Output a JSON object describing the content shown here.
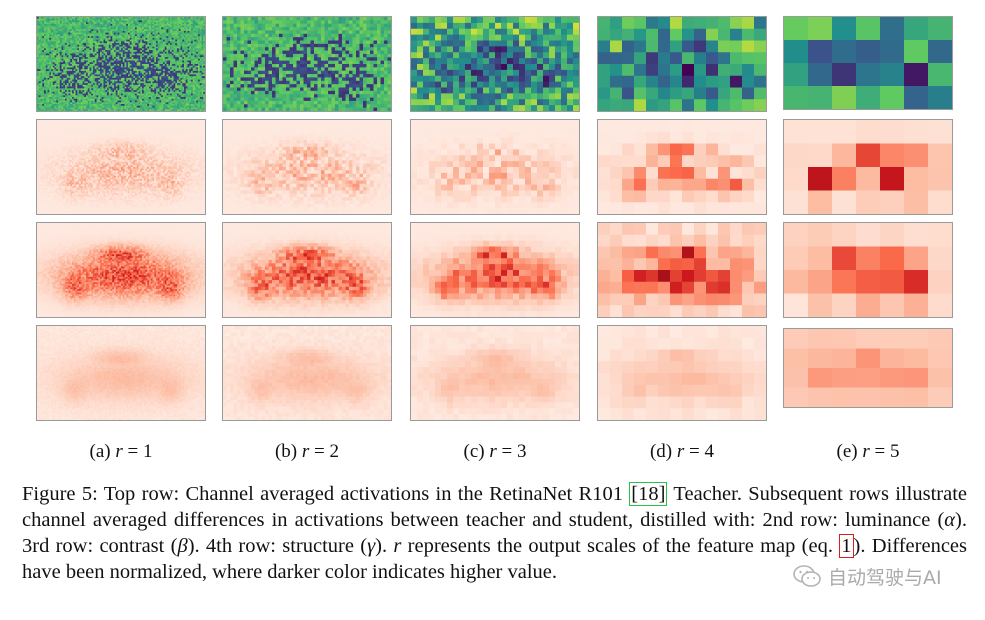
{
  "figure": {
    "columns": [
      {
        "id": "a",
        "prefix": "(a) ",
        "var": "r",
        "rest": " = 1"
      },
      {
        "id": "b",
        "prefix": "(b) ",
        "var": "r",
        "rest": " = 2"
      },
      {
        "id": "c",
        "prefix": "(c) ",
        "var": "r",
        "rest": " = 3"
      },
      {
        "id": "d",
        "prefix": "(d) ",
        "var": "r",
        "rest": " = 4"
      },
      {
        "id": "e",
        "prefix": "(e) ",
        "var": "r",
        "rest": " = 5"
      }
    ],
    "rows": [
      "teacher-activation",
      "luminance-difference",
      "contrast-difference",
      "structure-difference"
    ],
    "colormaps": {
      "viridis": [
        "#440154",
        "#3b528b",
        "#21918c",
        "#5ec962",
        "#fde725"
      ],
      "reds": [
        "#fff5f0",
        "#fcbba1",
        "#fb6a4a",
        "#cb181d",
        "#67000d"
      ]
    }
  },
  "caption": {
    "part1": "Figure 5: Top row: Channel averaged activations in the RetinaNet R101 ",
    "cite": "[18]",
    "part2": " Teacher. Subsequent rows illustrate channel averaged differences in activations between teacher and student, distilled with: 2nd row: luminance (",
    "alpha": "α",
    "part3": "). 3rd row: contrast (",
    "beta": "β",
    "part4": "). 4th row: structure (",
    "gamma": "γ",
    "part5": "). ",
    "rvar": "r",
    "part6": " represents the output scales of the feature map (eq. ",
    "eq": "1",
    "part7": "). Differences have been normalized, where darker color indicates higher value."
  },
  "watermark": {
    "text": "自动驾驶与AI"
  }
}
